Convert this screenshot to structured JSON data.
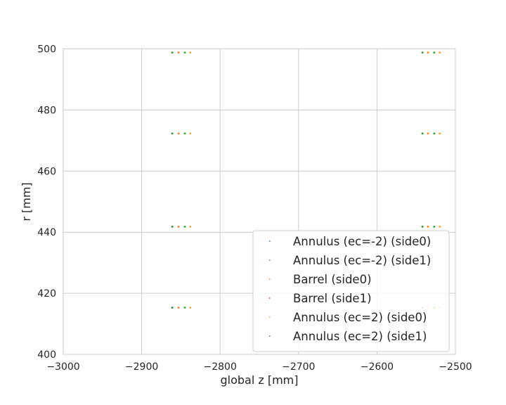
{
  "chart_data": {
    "type": "scatter",
    "xlabel": "global z [mm]",
    "ylabel": "r [mm]",
    "xlim": [
      -3000,
      -2500
    ],
    "ylim": [
      400,
      500
    ],
    "x_ticks": [
      -3000,
      -2900,
      -2800,
      -2700,
      -2600,
      -2500
    ],
    "x_tick_labels": [
      "−3000",
      "−2900",
      "−2800",
      "−2700",
      "−2600",
      "−2500"
    ],
    "y_ticks": [
      400,
      420,
      440,
      460,
      480,
      500
    ],
    "y_tick_labels": [
      "400",
      "420",
      "440",
      "460",
      "480",
      "500"
    ],
    "grid": true,
    "legend_position": "lower-right",
    "series": [
      {
        "name": "Annulus (ec=-2) (side0)",
        "color": "#1f77b4",
        "points": [
          [
            -2861,
            415.3
          ],
          [
            -2861,
            441.8
          ],
          [
            -2861,
            472.3
          ],
          [
            -2861,
            498.8
          ],
          [
            -2542,
            415.3
          ],
          [
            -2542,
            441.8
          ],
          [
            -2542,
            472.3
          ],
          [
            -2542,
            498.8
          ]
        ]
      },
      {
        "name": "Annulus (ec=-2) (side1)",
        "color": "#2ca02c",
        "points": [
          [
            -2861,
            415.3
          ],
          [
            -2861,
            441.8
          ],
          [
            -2861,
            472.3
          ],
          [
            -2861,
            498.8
          ],
          [
            -2845,
            415.3
          ],
          [
            -2845,
            441.8
          ],
          [
            -2845,
            472.3
          ],
          [
            -2845,
            498.8
          ],
          [
            -2542,
            415.3
          ],
          [
            -2542,
            441.8
          ],
          [
            -2542,
            472.3
          ],
          [
            -2542,
            498.8
          ],
          [
            -2527,
            415.3
          ],
          [
            -2527,
            441.8
          ],
          [
            -2527,
            472.3
          ],
          [
            -2527,
            498.8
          ]
        ]
      },
      {
        "name": "Barrel (side0)",
        "color": "#ff7f0e",
        "points": [
          [
            -2853,
            415.3
          ],
          [
            -2853,
            441.8
          ],
          [
            -2853,
            472.3
          ],
          [
            -2853,
            498.8
          ],
          [
            -2535,
            415.3
          ],
          [
            -2535,
            441.8
          ],
          [
            -2535,
            472.3
          ],
          [
            -2535,
            498.8
          ]
        ]
      },
      {
        "name": "Barrel (side1)",
        "color": "#d62728",
        "points": []
      },
      {
        "name": "Annulus (ec=2) (side0)",
        "color": "#ff9f1c",
        "points": [
          [
            -2838,
            415.3
          ],
          [
            -2838,
            441.8
          ],
          [
            -2838,
            472.3
          ],
          [
            -2838,
            498.8
          ],
          [
            -2520,
            415.3
          ],
          [
            -2520,
            441.8
          ],
          [
            -2520,
            472.3
          ],
          [
            -2520,
            498.8
          ]
        ]
      },
      {
        "name": "Annulus (ec=2) (side1)",
        "color": "#8c564b",
        "points": []
      }
    ]
  }
}
